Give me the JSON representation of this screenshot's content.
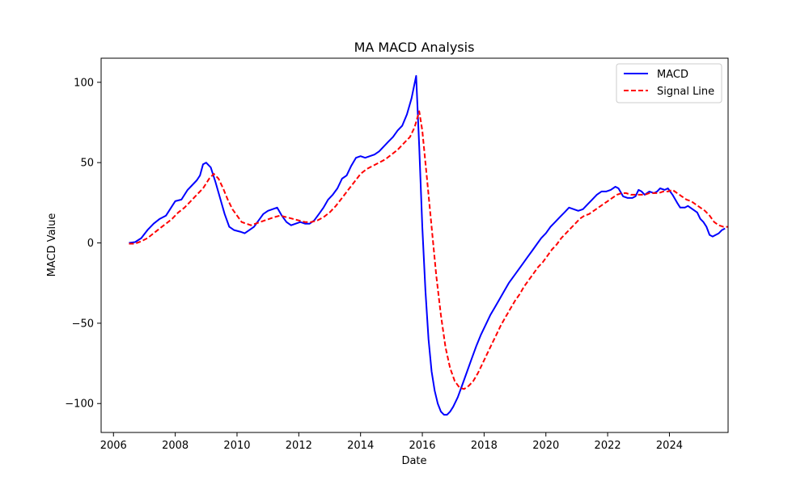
{
  "chart_data": {
    "type": "line",
    "title": "MA MACD Analysis",
    "xlabel": "Date",
    "ylabel": "MACD Value",
    "x_ticks": [
      "2006",
      "2008",
      "2010",
      "2012",
      "2014",
      "2016",
      "2018",
      "2020",
      "2022",
      "2024"
    ],
    "y_ticks": [
      "−100",
      "−50",
      "0",
      "50",
      "100"
    ],
    "xlim": [
      2005.6,
      2025.9
    ],
    "ylim": [
      -118,
      115
    ],
    "legend_position": "top-right",
    "grid": false,
    "series": [
      {
        "name": "MACD",
        "color": "#0000ff",
        "style": "solid",
        "points": [
          [
            2006.5,
            0
          ],
          [
            2006.7,
            0.5
          ],
          [
            2006.9,
            3
          ],
          [
            2007.1,
            8
          ],
          [
            2007.3,
            12
          ],
          [
            2007.5,
            15
          ],
          [
            2007.7,
            17
          ],
          [
            2007.9,
            23
          ],
          [
            2008.0,
            26
          ],
          [
            2008.2,
            27
          ],
          [
            2008.4,
            33
          ],
          [
            2008.6,
            37
          ],
          [
            2008.7,
            39
          ],
          [
            2008.8,
            42
          ],
          [
            2008.9,
            49
          ],
          [
            2009.0,
            50
          ],
          [
            2009.15,
            47
          ],
          [
            2009.3,
            38
          ],
          [
            2009.45,
            28
          ],
          [
            2009.6,
            18
          ],
          [
            2009.75,
            10
          ],
          [
            2009.9,
            8
          ],
          [
            2010.1,
            7
          ],
          [
            2010.25,
            6
          ],
          [
            2010.4,
            8
          ],
          [
            2010.55,
            10
          ],
          [
            2010.7,
            14
          ],
          [
            2010.85,
            18
          ],
          [
            2011.0,
            20
          ],
          [
            2011.15,
            21
          ],
          [
            2011.3,
            22
          ],
          [
            2011.45,
            17
          ],
          [
            2011.6,
            13
          ],
          [
            2011.75,
            11
          ],
          [
            2011.9,
            12
          ],
          [
            2012.05,
            13
          ],
          [
            2012.2,
            12
          ],
          [
            2012.35,
            12
          ],
          [
            2012.5,
            14
          ],
          [
            2012.65,
            18
          ],
          [
            2012.8,
            22
          ],
          [
            2012.95,
            27
          ],
          [
            2013.1,
            30
          ],
          [
            2013.25,
            34
          ],
          [
            2013.4,
            40
          ],
          [
            2013.55,
            42
          ],
          [
            2013.7,
            48
          ],
          [
            2013.85,
            53
          ],
          [
            2014.0,
            54
          ],
          [
            2014.15,
            53
          ],
          [
            2014.3,
            54
          ],
          [
            2014.45,
            55
          ],
          [
            2014.6,
            57
          ],
          [
            2014.75,
            60
          ],
          [
            2014.9,
            63
          ],
          [
            2015.05,
            66
          ],
          [
            2015.2,
            70
          ],
          [
            2015.35,
            73
          ],
          [
            2015.5,
            80
          ],
          [
            2015.65,
            90
          ],
          [
            2015.8,
            104
          ],
          [
            2015.9,
            60
          ],
          [
            2016.0,
            10
          ],
          [
            2016.1,
            -30
          ],
          [
            2016.2,
            -60
          ],
          [
            2016.3,
            -80
          ],
          [
            2016.4,
            -92
          ],
          [
            2016.5,
            -100
          ],
          [
            2016.6,
            -105
          ],
          [
            2016.7,
            -107
          ],
          [
            2016.8,
            -107
          ],
          [
            2016.9,
            -105
          ],
          [
            2017.0,
            -102
          ],
          [
            2017.15,
            -96
          ],
          [
            2017.3,
            -88
          ],
          [
            2017.45,
            -80
          ],
          [
            2017.6,
            -72
          ],
          [
            2017.75,
            -64
          ],
          [
            2017.9,
            -57
          ],
          [
            2018.05,
            -51
          ],
          [
            2018.2,
            -45
          ],
          [
            2018.35,
            -40
          ],
          [
            2018.5,
            -35
          ],
          [
            2018.65,
            -30
          ],
          [
            2018.8,
            -25
          ],
          [
            2018.95,
            -21
          ],
          [
            2019.1,
            -17
          ],
          [
            2019.25,
            -13
          ],
          [
            2019.4,
            -9
          ],
          [
            2019.55,
            -5
          ],
          [
            2019.7,
            -1
          ],
          [
            2019.85,
            3
          ],
          [
            2020.0,
            6
          ],
          [
            2020.15,
            10
          ],
          [
            2020.3,
            13
          ],
          [
            2020.45,
            16
          ],
          [
            2020.6,
            19
          ],
          [
            2020.75,
            22
          ],
          [
            2020.9,
            21
          ],
          [
            2021.05,
            20
          ],
          [
            2021.2,
            21
          ],
          [
            2021.35,
            24
          ],
          [
            2021.5,
            27
          ],
          [
            2021.65,
            30
          ],
          [
            2021.8,
            32
          ],
          [
            2021.95,
            32
          ],
          [
            2022.1,
            33
          ],
          [
            2022.25,
            35
          ],
          [
            2022.35,
            34
          ],
          [
            2022.5,
            29
          ],
          [
            2022.65,
            28
          ],
          [
            2022.8,
            28
          ],
          [
            2022.9,
            29
          ],
          [
            2023.0,
            33
          ],
          [
            2023.1,
            32
          ],
          [
            2023.2,
            30
          ],
          [
            2023.35,
            32
          ],
          [
            2023.5,
            31
          ],
          [
            2023.6,
            32
          ],
          [
            2023.7,
            34
          ],
          [
            2023.85,
            33
          ],
          [
            2023.95,
            34
          ],
          [
            2024.1,
            30
          ],
          [
            2024.25,
            25
          ],
          [
            2024.35,
            22
          ],
          [
            2024.5,
            22
          ],
          [
            2024.6,
            23
          ],
          [
            2024.75,
            21
          ],
          [
            2024.9,
            19
          ],
          [
            2025.0,
            15
          ],
          [
            2025.1,
            13
          ],
          [
            2025.2,
            10
          ],
          [
            2025.3,
            5
          ],
          [
            2025.4,
            4
          ],
          [
            2025.5,
            5
          ],
          [
            2025.6,
            6
          ],
          [
            2025.7,
            8
          ],
          [
            2025.8,
            9
          ]
        ]
      },
      {
        "name": "Signal Line",
        "color": "#ff0000",
        "style": "dashed",
        "points": [
          [
            2006.5,
            -0.5
          ],
          [
            2006.7,
            -0.5
          ],
          [
            2006.9,
            1
          ],
          [
            2007.1,
            3
          ],
          [
            2007.3,
            6
          ],
          [
            2007.5,
            9
          ],
          [
            2007.7,
            12
          ],
          [
            2007.9,
            15
          ],
          [
            2008.1,
            19
          ],
          [
            2008.3,
            22
          ],
          [
            2008.5,
            26
          ],
          [
            2008.7,
            30
          ],
          [
            2008.9,
            34
          ],
          [
            2009.1,
            40
          ],
          [
            2009.25,
            43
          ],
          [
            2009.4,
            40
          ],
          [
            2009.55,
            34
          ],
          [
            2009.7,
            27
          ],
          [
            2009.85,
            21
          ],
          [
            2010.0,
            17
          ],
          [
            2010.15,
            13
          ],
          [
            2010.3,
            12
          ],
          [
            2010.45,
            11
          ],
          [
            2010.6,
            12
          ],
          [
            2010.75,
            13
          ],
          [
            2010.9,
            14
          ],
          [
            2011.05,
            15
          ],
          [
            2011.2,
            16
          ],
          [
            2011.4,
            17
          ],
          [
            2011.6,
            16
          ],
          [
            2011.8,
            15
          ],
          [
            2012.0,
            14
          ],
          [
            2012.2,
            13
          ],
          [
            2012.4,
            13
          ],
          [
            2012.6,
            14
          ],
          [
            2012.8,
            16
          ],
          [
            2013.0,
            19
          ],
          [
            2013.2,
            23
          ],
          [
            2013.4,
            28
          ],
          [
            2013.6,
            33
          ],
          [
            2013.8,
            38
          ],
          [
            2014.0,
            43
          ],
          [
            2014.2,
            46
          ],
          [
            2014.4,
            48
          ],
          [
            2014.6,
            50
          ],
          [
            2014.8,
            52
          ],
          [
            2015.0,
            55
          ],
          [
            2015.2,
            58
          ],
          [
            2015.4,
            62
          ],
          [
            2015.6,
            66
          ],
          [
            2015.75,
            72
          ],
          [
            2015.9,
            82
          ],
          [
            2016.0,
            70
          ],
          [
            2016.15,
            40
          ],
          [
            2016.3,
            10
          ],
          [
            2016.45,
            -20
          ],
          [
            2016.6,
            -45
          ],
          [
            2016.75,
            -65
          ],
          [
            2016.9,
            -78
          ],
          [
            2017.05,
            -86
          ],
          [
            2017.2,
            -90
          ],
          [
            2017.35,
            -91
          ],
          [
            2017.5,
            -89
          ],
          [
            2017.65,
            -86
          ],
          [
            2017.8,
            -81
          ],
          [
            2017.95,
            -75
          ],
          [
            2018.1,
            -69
          ],
          [
            2018.25,
            -63
          ],
          [
            2018.4,
            -57
          ],
          [
            2018.55,
            -51
          ],
          [
            2018.7,
            -46
          ],
          [
            2018.85,
            -41
          ],
          [
            2019.0,
            -36
          ],
          [
            2019.15,
            -32
          ],
          [
            2019.3,
            -27
          ],
          [
            2019.45,
            -23
          ],
          [
            2019.6,
            -19
          ],
          [
            2019.75,
            -15
          ],
          [
            2019.9,
            -12
          ],
          [
            2020.05,
            -8
          ],
          [
            2020.2,
            -4
          ],
          [
            2020.35,
            -1
          ],
          [
            2020.5,
            3
          ],
          [
            2020.65,
            6
          ],
          [
            2020.8,
            9
          ],
          [
            2020.95,
            12
          ],
          [
            2021.1,
            15
          ],
          [
            2021.25,
            17
          ],
          [
            2021.4,
            18
          ],
          [
            2021.55,
            20
          ],
          [
            2021.7,
            22
          ],
          [
            2021.85,
            24
          ],
          [
            2022.0,
            26
          ],
          [
            2022.15,
            28
          ],
          [
            2022.3,
            30
          ],
          [
            2022.45,
            31
          ],
          [
            2022.6,
            31
          ],
          [
            2022.75,
            30
          ],
          [
            2022.9,
            30
          ],
          [
            2023.05,
            30
          ],
          [
            2023.2,
            30
          ],
          [
            2023.35,
            31
          ],
          [
            2023.5,
            31
          ],
          [
            2023.65,
            31
          ],
          [
            2023.8,
            32
          ],
          [
            2023.95,
            32
          ],
          [
            2024.1,
            33
          ],
          [
            2024.25,
            31
          ],
          [
            2024.4,
            29
          ],
          [
            2024.55,
            27
          ],
          [
            2024.7,
            26
          ],
          [
            2024.85,
            24
          ],
          [
            2025.0,
            22
          ],
          [
            2025.15,
            20
          ],
          [
            2025.3,
            17
          ],
          [
            2025.45,
            13
          ],
          [
            2025.6,
            11
          ],
          [
            2025.75,
            10
          ],
          [
            2025.9,
            10
          ]
        ]
      }
    ]
  }
}
